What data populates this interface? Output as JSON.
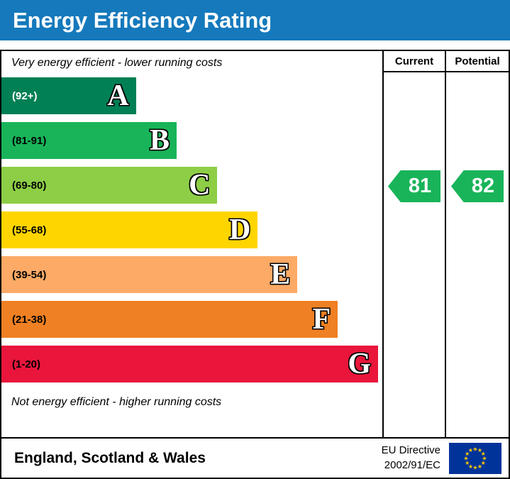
{
  "title": "Energy Efficiency Rating",
  "title_bg": "#1579bc",
  "columns": {
    "current": "Current",
    "potential": "Potential"
  },
  "notes": {
    "top": "Very energy efficient - lower running costs",
    "bottom": "Not energy efficient - higher running costs"
  },
  "chart_data": {
    "type": "bar",
    "title": "Energy Efficiency Rating",
    "categories": [
      "A",
      "B",
      "C",
      "D",
      "E",
      "F",
      "G"
    ],
    "bands": [
      {
        "letter": "A",
        "range": "(92+)",
        "color": "#008054",
        "range_color": "#ffffff",
        "width_pct": 35.3
      },
      {
        "letter": "B",
        "range": "(81-91)",
        "color": "#19b459",
        "range_color": "#000000",
        "width_pct": 46.0
      },
      {
        "letter": "C",
        "range": "(69-80)",
        "color": "#8dce46",
        "range_color": "#000000",
        "width_pct": 56.7
      },
      {
        "letter": "D",
        "range": "(55-68)",
        "color": "#ffd500",
        "range_color": "#000000",
        "width_pct": 67.3
      },
      {
        "letter": "E",
        "range": "(39-54)",
        "color": "#fcaa65",
        "range_color": "#000000",
        "width_pct": 77.7
      },
      {
        "letter": "F",
        "range": "(21-38)",
        "color": "#ef8023",
        "range_color": "#000000",
        "width_pct": 88.3
      },
      {
        "letter": "G",
        "range": "(1-20)",
        "color": "#e9153b",
        "range_color": "#000000",
        "width_pct": 98.9
      }
    ],
    "current": {
      "value": 81,
      "band": "B",
      "color": "#19b459"
    },
    "potential": {
      "value": 82,
      "band": "B",
      "color": "#19b459"
    }
  },
  "footer": {
    "region": "England, Scotland & Wales",
    "directive_line1": "EU Directive",
    "directive_line2": "2002/91/EC",
    "flag": {
      "bg": "#003399",
      "star_color": "#ffcc00"
    }
  }
}
